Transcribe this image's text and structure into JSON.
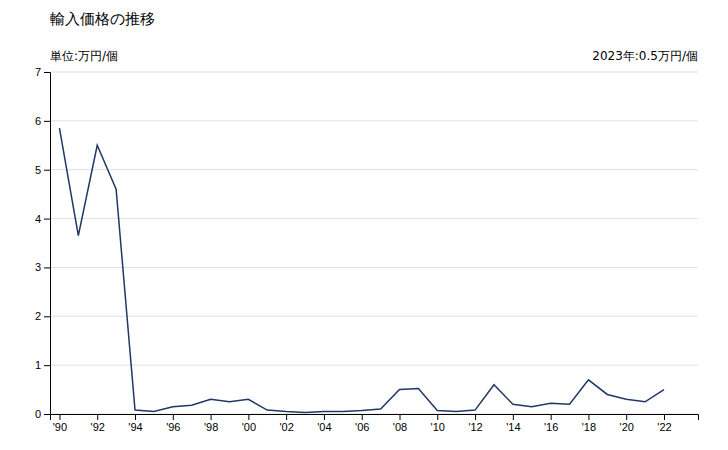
{
  "chart_data": {
    "type": "line",
    "title": "輸入価格の推移",
    "ylabel": "単位:万円/個",
    "annotation": "2023年:0.5万円/個",
    "x": [
      1990,
      1991,
      1992,
      1993,
      1994,
      1995,
      1996,
      1997,
      1998,
      1999,
      2000,
      2001,
      2002,
      2003,
      2004,
      2005,
      2006,
      2007,
      2008,
      2009,
      2010,
      2011,
      2012,
      2013,
      2014,
      2015,
      2016,
      2017,
      2018,
      2019,
      2020,
      2021,
      2022
    ],
    "values": [
      5.85,
      3.65,
      5.5,
      4.6,
      0.08,
      0.05,
      0.15,
      0.18,
      0.3,
      0.25,
      0.3,
      0.08,
      0.05,
      0.03,
      0.05,
      0.05,
      0.07,
      0.1,
      0.5,
      0.52,
      0.07,
      0.05,
      0.08,
      0.6,
      0.2,
      0.15,
      0.22,
      0.2,
      0.7,
      0.4,
      0.3,
      0.25,
      0.5
    ],
    "color": "#1f3864",
    "xlim": [
      1989.5,
      2023.8
    ],
    "xticks": [
      {
        "value": 1990,
        "label": "'90"
      },
      {
        "value": 1992,
        "label": "'92"
      },
      {
        "value": 1994,
        "label": "'94"
      },
      {
        "value": 1996,
        "label": "'96"
      },
      {
        "value": 1998,
        "label": "'98"
      },
      {
        "value": 2000,
        "label": "'00"
      },
      {
        "value": 2002,
        "label": "'02"
      },
      {
        "value": 2004,
        "label": "'04"
      },
      {
        "value": 2006,
        "label": "'06"
      },
      {
        "value": 2008,
        "label": "'08"
      },
      {
        "value": 2010,
        "label": "'10"
      },
      {
        "value": 2012,
        "label": "'12"
      },
      {
        "value": 2014,
        "label": "'14"
      },
      {
        "value": 2016,
        "label": "'16"
      },
      {
        "value": 2018,
        "label": "'18"
      },
      {
        "value": 2020,
        "label": "'20"
      },
      {
        "value": 2022,
        "label": "'22"
      }
    ],
    "ylim": [
      0,
      7
    ],
    "yticks": [
      0,
      1,
      2,
      3,
      4,
      5,
      6,
      7
    ],
    "grid": true
  }
}
